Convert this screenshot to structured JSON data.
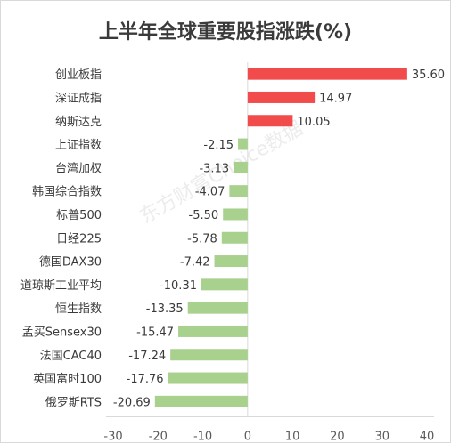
{
  "chart_data": {
    "type": "bar",
    "orientation": "horizontal",
    "title": "上半年全球重要股指涨跌(%)",
    "categories": [
      "创业板指",
      "深证成指",
      "纳斯达克",
      "上证指数",
      "台湾加权",
      "韩国综合指数",
      "标普500",
      "日经225",
      "德国DAX30",
      "道琼斯工业平均",
      "恒生指数",
      "孟买Sensex30",
      "法国CAC40",
      "英国富时100",
      "俄罗斯RTS"
    ],
    "values": [
      35.6,
      14.97,
      10.05,
      -2.15,
      -3.13,
      -4.07,
      -5.5,
      -5.78,
      -7.42,
      -10.31,
      -13.35,
      -15.47,
      -17.24,
      -17.76,
      -20.69
    ],
    "value_labels": [
      "35.60",
      "14.97",
      "10.05",
      "-2.15",
      "-3.13",
      "-4.07",
      "-5.50",
      "-5.78",
      "-7.42",
      "-10.31",
      "-13.35",
      "-15.47",
      "-17.24",
      "-17.76",
      "-20.69"
    ],
    "xlim": [
      -30,
      40
    ],
    "xticks": [
      -30,
      -20,
      -10,
      0,
      10,
      20,
      30,
      40
    ],
    "grid": false,
    "colors": {
      "positive": "#f24b4b",
      "negative": "#a9d18e",
      "text": "#3a3a3a",
      "axis": "#d9d9d9"
    }
  },
  "watermark": "东方财富Choice数据"
}
